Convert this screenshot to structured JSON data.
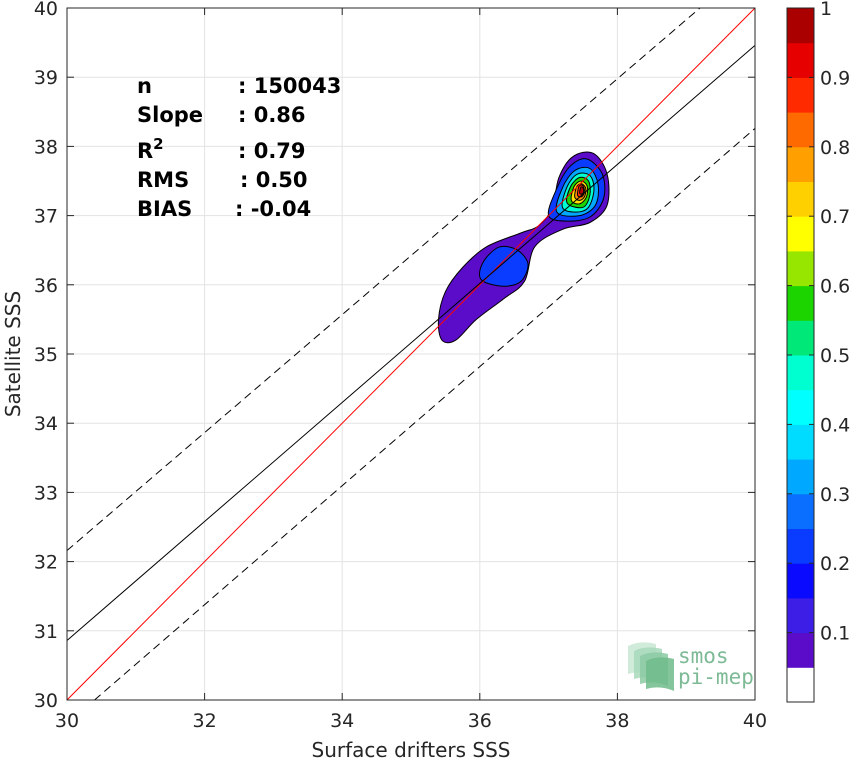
{
  "chart_data": {
    "type": "heatmap",
    "title": "",
    "xlabel": "Surface drifters SSS",
    "ylabel": "Satellite SSS",
    "xlim": [
      30,
      40
    ],
    "ylim": [
      30,
      40
    ],
    "xticks": [
      "30",
      "32",
      "34",
      "36",
      "38",
      "40"
    ],
    "yticks": [
      "30",
      "31",
      "32",
      "33",
      "34",
      "35",
      "36",
      "37",
      "38",
      "39",
      "40"
    ],
    "grid": true,
    "stats": [
      {
        "label": "n",
        "sep": ":",
        "value": "150043"
      },
      {
        "label": "Slope",
        "sep": ":",
        "value": "0.86"
      },
      {
        "label": "R",
        "sup": "2",
        "sep": ":",
        "value": "0.79"
      },
      {
        "label": "RMS",
        "sep": ":",
        "value": "0.50"
      },
      {
        "label": "BIAS",
        "sep": ":",
        "value": "-0.04"
      }
    ],
    "lines": [
      {
        "name": "1:1",
        "color": "#ff0000",
        "style": "solid",
        "points": [
          [
            30,
            30
          ],
          [
            40,
            40
          ]
        ]
      },
      {
        "name": "fit",
        "color": "#000000",
        "style": "solid",
        "points": [
          [
            30,
            30.86
          ],
          [
            40,
            39.46
          ]
        ]
      },
      {
        "name": "upper",
        "color": "#000000",
        "style": "dashed",
        "points": [
          [
            30,
            32.16
          ],
          [
            39.2,
            40
          ]
        ]
      },
      {
        "name": "lower",
        "color": "#000000",
        "style": "dashed",
        "points": [
          [
            30.4,
            30
          ],
          [
            40,
            38.26
          ]
        ]
      }
    ],
    "density": [
      {
        "level": 0.05,
        "color": "#5a0cc8",
        "points": [
          [
            35.4,
            35.5
          ],
          [
            35.5,
            35.9
          ],
          [
            35.75,
            36.25
          ],
          [
            36.1,
            36.55
          ],
          [
            36.6,
            36.75
          ],
          [
            36.85,
            36.85
          ],
          [
            37.05,
            37.1
          ],
          [
            37.15,
            37.55
          ],
          [
            37.35,
            37.85
          ],
          [
            37.65,
            37.9
          ],
          [
            37.85,
            37.6
          ],
          [
            37.85,
            37.15
          ],
          [
            37.6,
            36.9
          ],
          [
            37.2,
            36.8
          ],
          [
            36.8,
            36.55
          ],
          [
            36.65,
            36.05
          ],
          [
            36.35,
            35.8
          ],
          [
            35.95,
            35.5
          ],
          [
            35.65,
            35.2
          ],
          [
            35.45,
            35.2
          ]
        ]
      },
      {
        "level": 0.2,
        "color": "#0a3cff",
        "points": [
          [
            36.0,
            36.2
          ],
          [
            36.1,
            36.4
          ],
          [
            36.3,
            36.55
          ],
          [
            36.55,
            36.5
          ],
          [
            36.7,
            36.3
          ],
          [
            36.6,
            36.05
          ],
          [
            36.35,
            35.98
          ],
          [
            36.05,
            36.05
          ]
        ]
      },
      {
        "level": 0.2,
        "color": "#0a3cff",
        "points": [
          [
            37.0,
            37.0
          ],
          [
            37.1,
            37.35
          ],
          [
            37.3,
            37.7
          ],
          [
            37.55,
            37.82
          ],
          [
            37.78,
            37.6
          ],
          [
            37.8,
            37.25
          ],
          [
            37.6,
            36.98
          ],
          [
            37.25,
            36.92
          ]
        ]
      },
      {
        "level": 0.35,
        "color": "#00a8ff",
        "points": [
          [
            37.12,
            37.05
          ],
          [
            37.2,
            37.4
          ],
          [
            37.38,
            37.65
          ],
          [
            37.6,
            37.68
          ],
          [
            37.72,
            37.45
          ],
          [
            37.68,
            37.15
          ],
          [
            37.45,
            37.0
          ]
        ]
      },
      {
        "level": 0.45,
        "color": "#00ffd0",
        "points": [
          [
            37.2,
            37.12
          ],
          [
            37.27,
            37.42
          ],
          [
            37.42,
            37.6
          ],
          [
            37.6,
            37.58
          ],
          [
            37.66,
            37.38
          ],
          [
            37.58,
            37.12
          ],
          [
            37.4,
            37.05
          ]
        ]
      },
      {
        "level": 0.55,
        "color": "#1cd400",
        "points": [
          [
            37.27,
            37.18
          ],
          [
            37.32,
            37.42
          ],
          [
            37.45,
            37.55
          ],
          [
            37.58,
            37.5
          ],
          [
            37.6,
            37.3
          ],
          [
            37.5,
            37.12
          ]
        ]
      },
      {
        "level": 0.65,
        "color": "#ffe100",
        "points": [
          [
            37.33,
            37.22
          ],
          [
            37.37,
            37.42
          ],
          [
            37.47,
            37.5
          ],
          [
            37.56,
            37.43
          ],
          [
            37.55,
            37.27
          ],
          [
            37.45,
            37.17
          ]
        ]
      },
      {
        "level": 0.75,
        "color": "#ff8c00",
        "points": [
          [
            37.38,
            37.27
          ],
          [
            37.41,
            37.42
          ],
          [
            37.48,
            37.46
          ],
          [
            37.54,
            37.39
          ],
          [
            37.52,
            37.27
          ],
          [
            37.45,
            37.22
          ]
        ]
      },
      {
        "level": 0.85,
        "color": "#ff2a00",
        "points": [
          [
            37.42,
            37.3
          ],
          [
            37.44,
            37.42
          ],
          [
            37.49,
            37.44
          ],
          [
            37.52,
            37.37
          ],
          [
            37.5,
            37.29
          ],
          [
            37.46,
            37.27
          ]
        ]
      },
      {
        "level": 0.95,
        "color": "#b40000",
        "points": [
          [
            37.45,
            37.33
          ],
          [
            37.47,
            37.41
          ],
          [
            37.5,
            37.4
          ],
          [
            37.51,
            37.34
          ],
          [
            37.48,
            37.31
          ]
        ]
      }
    ],
    "colorbar": {
      "ticks": [
        "0.1",
        "0.2",
        "0.3",
        "0.4",
        "0.5",
        "0.6",
        "0.7",
        "0.8",
        "0.9",
        "1"
      ],
      "bins": [
        {
          "from": 0.0,
          "to": 0.05,
          "color": "#ffffff"
        },
        {
          "from": 0.05,
          "to": 0.1,
          "color": "#5a0cc8"
        },
        {
          "from": 0.1,
          "to": 0.15,
          "color": "#3c1ee6"
        },
        {
          "from": 0.15,
          "to": 0.2,
          "color": "#0a0aff"
        },
        {
          "from": 0.2,
          "to": 0.25,
          "color": "#0a3cff"
        },
        {
          "from": 0.25,
          "to": 0.3,
          "color": "#0a6eff"
        },
        {
          "from": 0.3,
          "to": 0.35,
          "color": "#00a8ff"
        },
        {
          "from": 0.35,
          "to": 0.4,
          "color": "#00dcff"
        },
        {
          "from": 0.4,
          "to": 0.45,
          "color": "#00ffff"
        },
        {
          "from": 0.45,
          "to": 0.5,
          "color": "#00ffd0"
        },
        {
          "from": 0.5,
          "to": 0.55,
          "color": "#00e878"
        },
        {
          "from": 0.55,
          "to": 0.6,
          "color": "#1cd400"
        },
        {
          "from": 0.6,
          "to": 0.65,
          "color": "#96e600"
        },
        {
          "from": 0.65,
          "to": 0.7,
          "color": "#ffff00"
        },
        {
          "from": 0.7,
          "to": 0.75,
          "color": "#ffd000"
        },
        {
          "from": 0.75,
          "to": 0.8,
          "color": "#ffa000"
        },
        {
          "from": 0.8,
          "to": 0.85,
          "color": "#ff6a00"
        },
        {
          "from": 0.85,
          "to": 0.9,
          "color": "#ff2a00"
        },
        {
          "from": 0.9,
          "to": 0.95,
          "color": "#e60000"
        },
        {
          "from": 0.95,
          "to": 1.0,
          "color": "#aa0000"
        }
      ]
    },
    "watermark": [
      "smos",
      "pi-mep"
    ]
  }
}
